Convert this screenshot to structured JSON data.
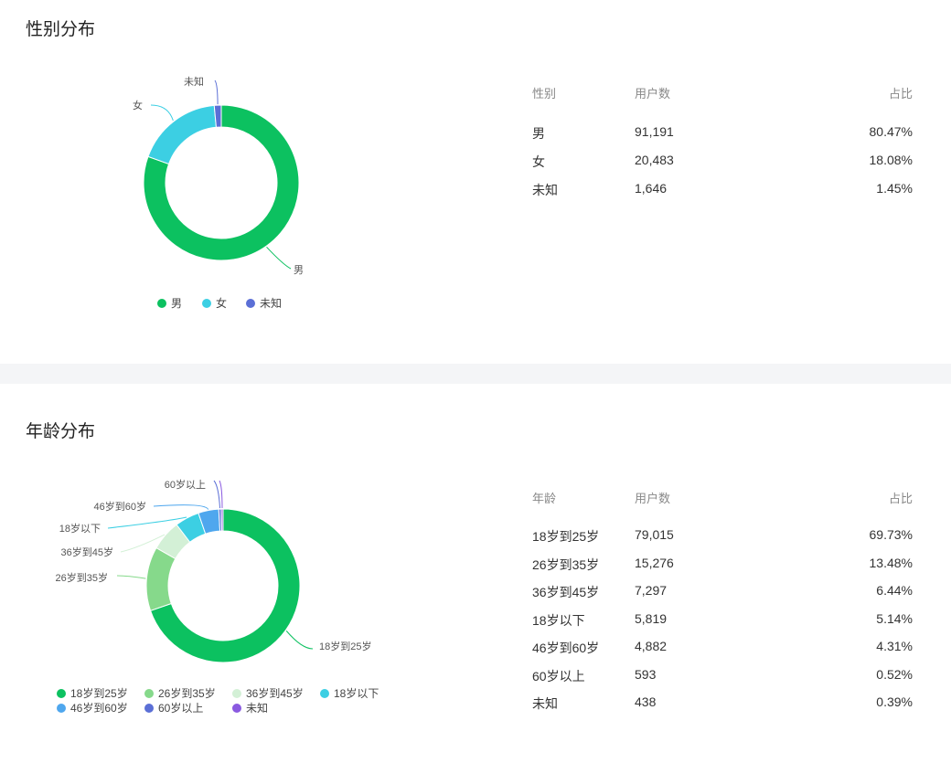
{
  "gender": {
    "title": "性别分布",
    "table": {
      "headers": [
        "性别",
        "用户数",
        "占比"
      ],
      "rows": [
        [
          "男",
          "91,191",
          "80.47%"
        ],
        [
          "女",
          "20,483",
          "18.08%"
        ],
        [
          "未知",
          "1,646",
          "1.45%"
        ]
      ]
    },
    "chart_data": {
      "type": "pie",
      "categories": [
        "男",
        "女",
        "未知"
      ],
      "values": [
        91191,
        20483,
        1646
      ],
      "colors": [
        "#0cc160",
        "#3ccfe3",
        "#5b6fd6"
      ],
      "legend_position": "bottom"
    }
  },
  "age": {
    "title": "年龄分布",
    "table": {
      "headers": [
        "年龄",
        "用户数",
        "占比"
      ],
      "rows": [
        [
          "18岁到25岁",
          "79,015",
          "69.73%"
        ],
        [
          "26岁到35岁",
          "15,276",
          "13.48%"
        ],
        [
          "36岁到45岁",
          "7,297",
          "6.44%"
        ],
        [
          "18岁以下",
          "5,819",
          "5.14%"
        ],
        [
          "46岁到60岁",
          "4,882",
          "4.31%"
        ],
        [
          "60岁以上",
          "593",
          "0.52%"
        ],
        [
          "未知",
          "438",
          "0.39%"
        ]
      ]
    },
    "chart_data": {
      "type": "pie",
      "categories": [
        "18岁到25岁",
        "26岁到35岁",
        "36岁到45岁",
        "18岁以下",
        "46岁到60岁",
        "60岁以上",
        "未知"
      ],
      "values": [
        79015,
        15276,
        7297,
        5819,
        4882,
        593,
        438
      ],
      "colors": [
        "#0cc160",
        "#86d98b",
        "#d3f0d6",
        "#3ccfe3",
        "#4fa7ee",
        "#5b6fd6",
        "#8a5ae0"
      ],
      "legend_position": "bottom"
    }
  }
}
